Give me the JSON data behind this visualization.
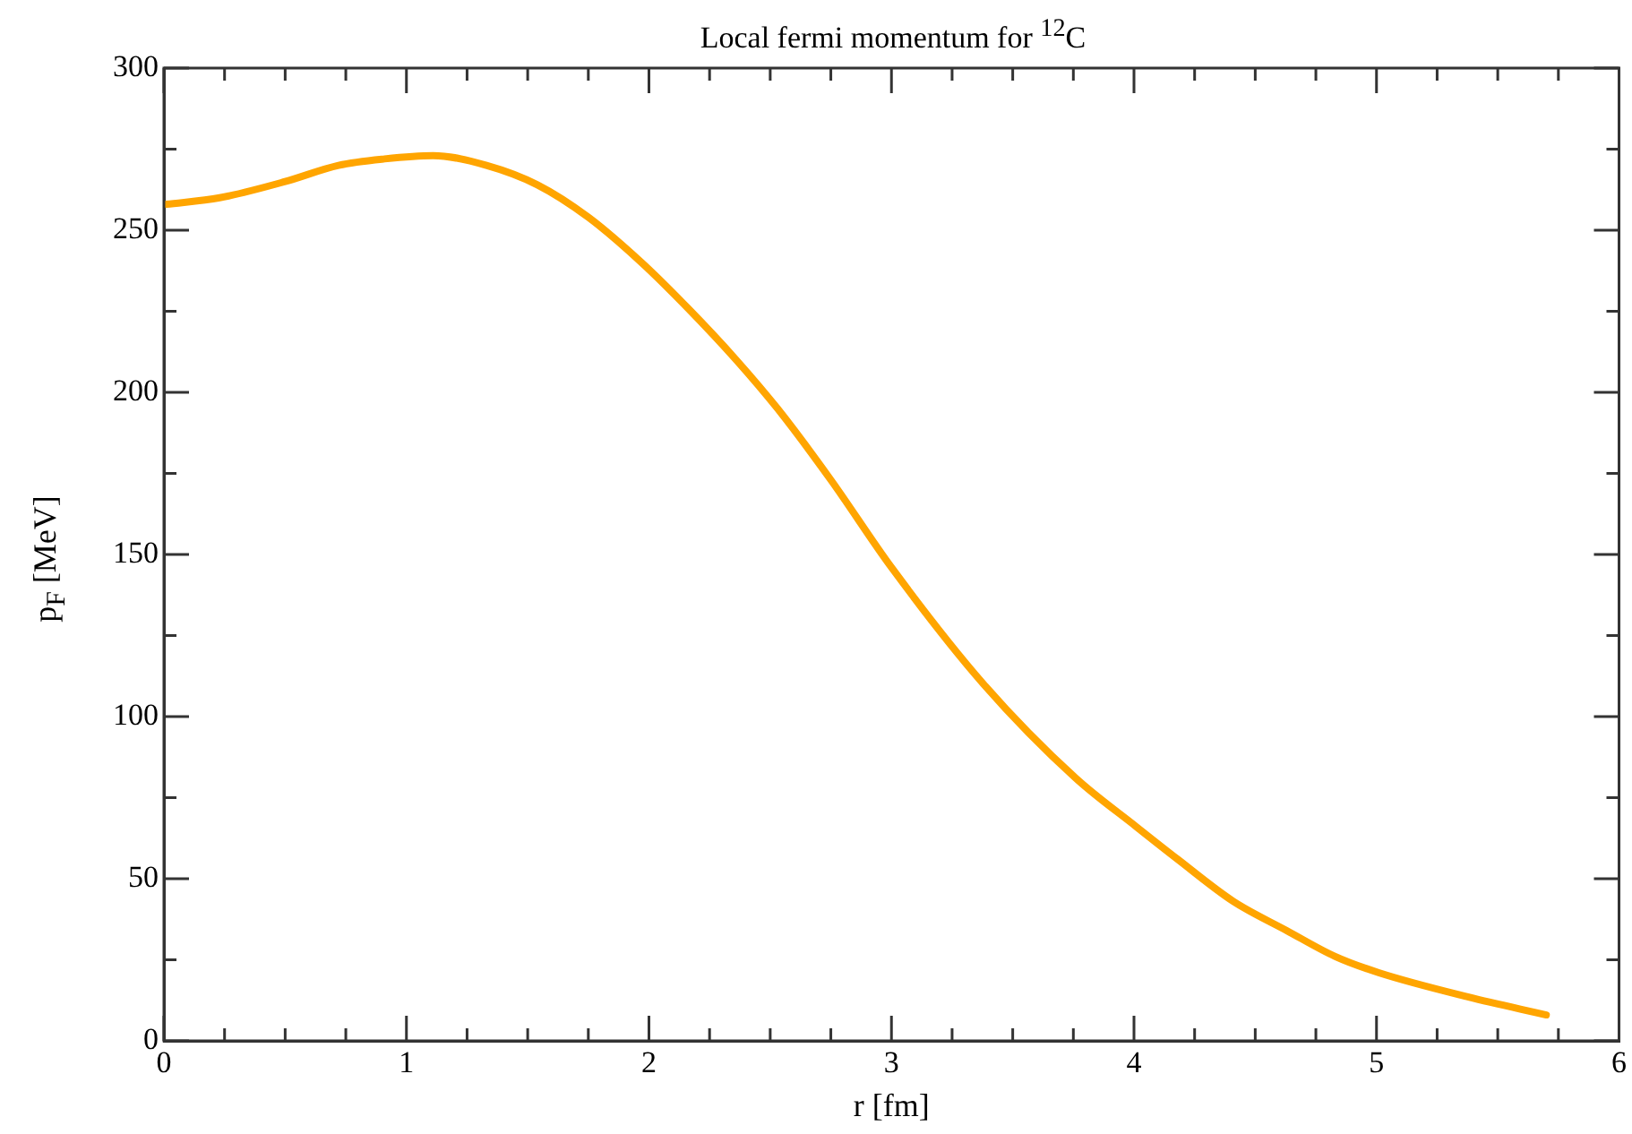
{
  "chart_data": {
    "type": "line",
    "title": "Local fermi momentum for $^{12}$C",
    "xlabel": "r [fm]",
    "ylabel": "p$_{F}$ [MeV]",
    "series": [
      {
        "color": "#ffa500",
        "x": [
          0.01,
          0.23,
          0.5,
          0.72,
          0.91,
          1.11,
          1.33,
          1.54,
          1.75,
          1.97,
          2.16,
          2.36,
          2.53,
          2.75,
          3.0,
          3.38,
          3.76,
          4.01,
          4.18,
          4.41,
          4.63,
          4.83,
          5.01,
          5.38,
          5.7
        ],
        "values": [
          258,
          260,
          265,
          270,
          272,
          273,
          270,
          264,
          254,
          240,
          226,
          210,
          195,
          173,
          146,
          110,
          81,
          66,
          56,
          43,
          34,
          26,
          21,
          13.5,
          8
        ]
      }
    ],
    "xlim": [
      0,
      6
    ],
    "xticks": [
      0,
      {
        "value": 0.25,
        "label": null
      },
      {
        "value": 0.5,
        "label": null
      },
      {
        "value": 0.75,
        "label": null
      },
      1,
      {
        "value": 1.25,
        "label": null
      },
      {
        "value": 1.5,
        "label": null
      },
      {
        "value": 1.75,
        "label": null
      },
      2,
      {
        "value": 2.25,
        "label": null
      },
      {
        "value": 2.5,
        "label": null
      },
      {
        "value": 2.75,
        "label": null
      },
      3,
      {
        "value": 3.25,
        "label": null
      },
      {
        "value": 3.5,
        "label": null
      },
      {
        "value": 3.75,
        "label": null
      },
      4,
      {
        "value": 4.25,
        "label": null
      },
      {
        "value": 4.5,
        "label": null
      },
      {
        "value": 4.75,
        "label": null
      },
      5,
      {
        "value": 5.25,
        "label": null
      },
      {
        "value": 5.5,
        "label": null
      },
      {
        "value": 5.75,
        "label": null
      },
      6
    ],
    "ylim": [
      0,
      300
    ],
    "yticks": [
      0,
      {
        "value": 25,
        "label": null
      },
      50,
      {
        "value": 75,
        "label": null
      },
      100,
      {
        "value": 125,
        "label": null
      },
      150,
      {
        "value": 175,
        "label": null
      },
      200,
      {
        "value": 225,
        "label": null
      },
      250,
      {
        "value": 275,
        "label": null
      },
      300
    ],
    "grid": false,
    "legend": false,
    "marker": "none",
    "line_style": "solid"
  }
}
